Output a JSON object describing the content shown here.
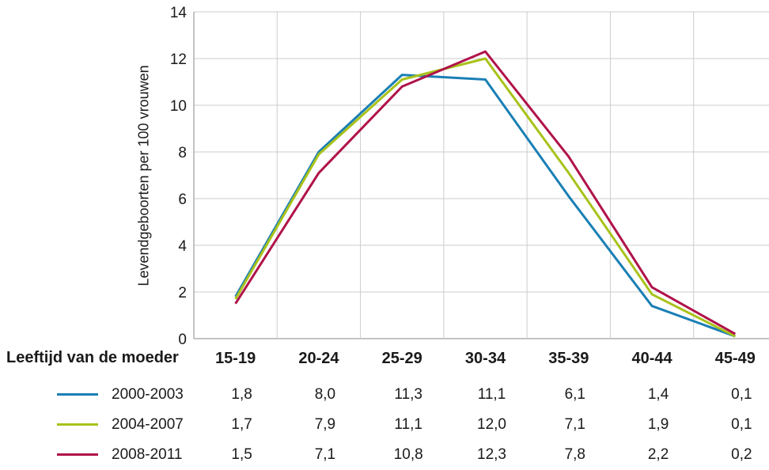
{
  "chart_data": {
    "type": "line",
    "categories": [
      "15-19",
      "20-24",
      "25-29",
      "30-34",
      "35-39",
      "40-44",
      "45-49"
    ],
    "series": [
      {
        "name": "2000-2003",
        "color": "#1a7fb5",
        "values": [
          1.8,
          8.0,
          11.3,
          11.1,
          6.1,
          1.4,
          0.1
        ],
        "labels": [
          "1,8",
          "8,0",
          "11,3",
          "11,1",
          "6,1",
          "1,4",
          "0,1"
        ]
      },
      {
        "name": "2004-2007",
        "color": "#a9c21a",
        "values": [
          1.7,
          7.9,
          11.1,
          12.0,
          7.1,
          1.9,
          0.1
        ],
        "labels": [
          "1,7",
          "7,9",
          "11,1",
          "12,0",
          "7,1",
          "1,9",
          "0,1"
        ]
      },
      {
        "name": "2008-2011",
        "color": "#b0124a",
        "values": [
          1.5,
          7.1,
          10.8,
          12.3,
          7.8,
          2.2,
          0.2
        ],
        "labels": [
          "1,5",
          "7,1",
          "10,8",
          "12,3",
          "7,8",
          "2,2",
          "0,2"
        ]
      }
    ],
    "xlabel": "Leeftijd van de moeder",
    "ylabel": "Levendgeboorten per 100 vrouwen",
    "ylim": [
      0,
      14
    ],
    "yticks": [
      0,
      2,
      4,
      6,
      8,
      10,
      12,
      14
    ],
    "grid": true,
    "legend": "table-below"
  }
}
